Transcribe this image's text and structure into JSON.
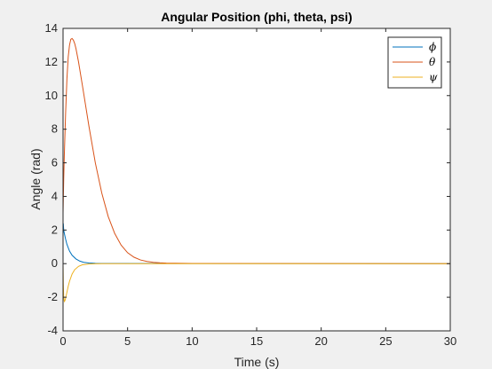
{
  "chart_data": {
    "type": "line",
    "title": "Angular Position (phi, theta, psi)",
    "xlabel": "Time (s)",
    "ylabel": "Angle (rad)",
    "xlim": [
      0,
      30
    ],
    "ylim": [
      -4,
      14
    ],
    "xticks": [
      "0",
      "5",
      "10",
      "15",
      "20",
      "25",
      "30"
    ],
    "yticks": [
      "-4",
      "-2",
      "0",
      "2",
      "4",
      "6",
      "8",
      "10",
      "12",
      "14"
    ],
    "grid": false,
    "legend_position": "top-right",
    "series": [
      {
        "name": "ϕ",
        "color": "#0072bd",
        "x": [
          0,
          0.02,
          0.05,
          0.1,
          0.2,
          0.3,
          0.5,
          0.7,
          1.0,
          1.3,
          1.6,
          2.0,
          2.5,
          3.0,
          30
        ],
        "y": [
          1.6,
          2.4,
          2.0,
          1.8,
          1.45,
          1.15,
          0.75,
          0.5,
          0.28,
          0.15,
          0.08,
          0.04,
          0.02,
          0.01,
          0.0
        ]
      },
      {
        "name": "θ",
        "color": "#d95319",
        "x": [
          0,
          0.05,
          0.1,
          0.2,
          0.3,
          0.4,
          0.5,
          0.6,
          0.7,
          0.8,
          0.9,
          1.0,
          1.2,
          1.5,
          2.0,
          2.5,
          3.0,
          3.5,
          4.0,
          4.5,
          5.0,
          5.5,
          6.0,
          6.5,
          7.0,
          7.5,
          8.0,
          10,
          30
        ],
        "y": [
          3.0,
          5.0,
          6.5,
          9.0,
          11.0,
          12.3,
          13.0,
          13.35,
          13.4,
          13.3,
          13.1,
          12.8,
          12.0,
          10.6,
          8.2,
          6.0,
          4.2,
          2.8,
          1.8,
          1.1,
          0.65,
          0.38,
          0.22,
          0.13,
          0.08,
          0.05,
          0.03,
          0.01,
          0.0
        ]
      },
      {
        "name": "ψ",
        "color": "#edb120",
        "x": [
          0,
          0.02,
          0.05,
          0.1,
          0.15,
          0.2,
          0.3,
          0.4,
          0.5,
          0.7,
          0.9,
          1.2,
          1.5,
          2.0,
          2.5,
          3.0,
          30
        ],
        "y": [
          0.0,
          -1.2,
          -2.0,
          -2.25,
          -2.2,
          -2.05,
          -1.7,
          -1.35,
          -1.05,
          -0.62,
          -0.36,
          -0.16,
          -0.07,
          -0.02,
          -0.01,
          0.0,
          0.0
        ]
      }
    ]
  }
}
